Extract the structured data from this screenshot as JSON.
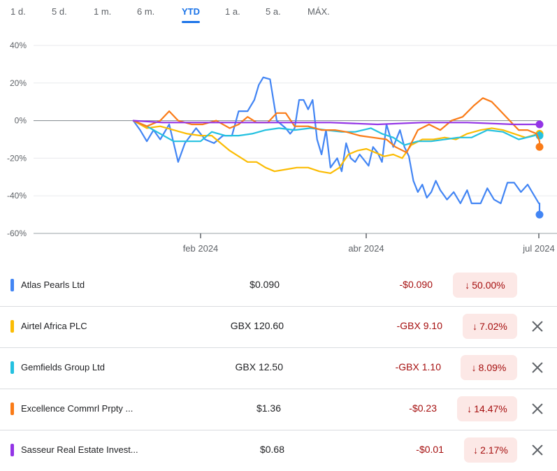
{
  "range_tabs": [
    "1 d.",
    "5 d.",
    "1 m.",
    "6 m.",
    "YTD",
    "1 a.",
    "5 a.",
    "MÁX."
  ],
  "active_tab": "YTD",
  "colors": {
    "accent": "#1a73e8",
    "negative": "#a50e0e",
    "negative_bg": "#fce8e6"
  },
  "chart_data": {
    "type": "line",
    "x_range": [
      "2024-01-02",
      "2024-07-01"
    ],
    "ylim": [
      -60,
      40
    ],
    "y_ticks": [
      "40%",
      "20%",
      "0%",
      "-20%",
      "-40%",
      "-60%"
    ],
    "x_ticks": [
      "feb 2024",
      "abr 2024",
      "jul 2024"
    ],
    "grid": true,
    "series": [
      {
        "name": "Atlas Pearls Ltd",
        "color": "#4285f4",
        "points": [
          [
            "2024-01-02",
            0
          ],
          [
            "2024-01-05",
            -5
          ],
          [
            "2024-01-08",
            -11
          ],
          [
            "2024-01-11",
            -5
          ],
          [
            "2024-01-14",
            -10
          ],
          [
            "2024-01-18",
            -2
          ],
          [
            "2024-01-22",
            -22
          ],
          [
            "2024-01-25",
            -12
          ],
          [
            "2024-01-30",
            -4
          ],
          [
            "2024-02-03",
            -10
          ],
          [
            "2024-02-07",
            -12
          ],
          [
            "2024-02-11",
            -8
          ],
          [
            "2024-02-15",
            -8
          ],
          [
            "2024-02-18",
            5
          ],
          [
            "2024-02-22",
            5
          ],
          [
            "2024-02-25",
            11
          ],
          [
            "2024-02-27",
            19
          ],
          [
            "2024-02-29",
            23
          ],
          [
            "2024-03-03",
            22
          ],
          [
            "2024-03-06",
            0
          ],
          [
            "2024-03-08",
            -2
          ],
          [
            "2024-03-10",
            -4
          ],
          [
            "2024-03-12",
            -7
          ],
          [
            "2024-03-14",
            -4
          ],
          [
            "2024-03-16",
            11
          ],
          [
            "2024-03-18",
            11
          ],
          [
            "2024-03-20",
            6
          ],
          [
            "2024-03-22",
            11
          ],
          [
            "2024-03-24",
            -10
          ],
          [
            "2024-03-26",
            -18
          ],
          [
            "2024-03-28",
            -5
          ],
          [
            "2024-03-30",
            -25
          ],
          [
            "2024-04-02",
            -20
          ],
          [
            "2024-04-04",
            -27
          ],
          [
            "2024-04-06",
            -12
          ],
          [
            "2024-04-08",
            -20
          ],
          [
            "2024-04-10",
            -22
          ],
          [
            "2024-04-12",
            -18
          ],
          [
            "2024-04-14",
            -21
          ],
          [
            "2024-04-16",
            -24
          ],
          [
            "2024-04-18",
            -14
          ],
          [
            "2024-04-20",
            -17
          ],
          [
            "2024-04-22",
            -22
          ],
          [
            "2024-04-24",
            -2
          ],
          [
            "2024-04-27",
            -14
          ],
          [
            "2024-04-30",
            -5
          ],
          [
            "2024-05-02",
            -14
          ],
          [
            "2024-05-04",
            -19
          ],
          [
            "2024-05-06",
            -32
          ],
          [
            "2024-05-08",
            -38
          ],
          [
            "2024-05-10",
            -34
          ],
          [
            "2024-05-12",
            -41
          ],
          [
            "2024-05-14",
            -38
          ],
          [
            "2024-05-16",
            -32
          ],
          [
            "2024-05-18",
            -37
          ],
          [
            "2024-05-21",
            -42
          ],
          [
            "2024-05-24",
            -38
          ],
          [
            "2024-05-27",
            -44
          ],
          [
            "2024-05-30",
            -37
          ],
          [
            "2024-06-01",
            -44
          ],
          [
            "2024-06-05",
            -44
          ],
          [
            "2024-06-08",
            -36
          ],
          [
            "2024-06-11",
            -42
          ],
          [
            "2024-06-14",
            -44
          ],
          [
            "2024-06-17",
            -33
          ],
          [
            "2024-06-20",
            -33
          ],
          [
            "2024-06-23",
            -38
          ],
          [
            "2024-06-26",
            -34
          ],
          [
            "2024-06-29",
            -40
          ],
          [
            "2024-07-01",
            -44
          ],
          [
            "2024-07-05",
            -44
          ],
          [
            "2024-07-08",
            -50
          ]
        ]
      },
      {
        "name": "Airtel Africa PLC",
        "color": "#fbbc04",
        "points": [
          [
            "2024-01-02",
            0
          ],
          [
            "2024-01-08",
            -4
          ],
          [
            "2024-01-14",
            -3
          ],
          [
            "2024-01-20",
            -5
          ],
          [
            "2024-01-26",
            -7
          ],
          [
            "2024-02-01",
            -8
          ],
          [
            "2024-02-06",
            -8
          ],
          [
            "2024-02-10",
            -12
          ],
          [
            "2024-02-14",
            -16
          ],
          [
            "2024-02-18",
            -19
          ],
          [
            "2024-02-22",
            -22
          ],
          [
            "2024-02-26",
            -22
          ],
          [
            "2024-03-01",
            -25
          ],
          [
            "2024-03-05",
            -27
          ],
          [
            "2024-03-10",
            -26
          ],
          [
            "2024-03-15",
            -25
          ],
          [
            "2024-03-20",
            -25
          ],
          [
            "2024-03-25",
            -27
          ],
          [
            "2024-03-30",
            -28
          ],
          [
            "2024-04-03",
            -25
          ],
          [
            "2024-04-07",
            -18
          ],
          [
            "2024-04-11",
            -16
          ],
          [
            "2024-04-15",
            -15
          ],
          [
            "2024-04-19",
            -17
          ],
          [
            "2024-04-23",
            -19
          ],
          [
            "2024-04-27",
            -18
          ],
          [
            "2024-05-01",
            -20
          ],
          [
            "2024-05-05",
            -13
          ],
          [
            "2024-05-10",
            -10
          ],
          [
            "2024-05-15",
            -10
          ],
          [
            "2024-05-20",
            -9
          ],
          [
            "2024-05-25",
            -10
          ],
          [
            "2024-05-30",
            -7
          ],
          [
            "2024-06-05",
            -5
          ],
          [
            "2024-06-10",
            -4
          ],
          [
            "2024-06-15",
            -5
          ],
          [
            "2024-06-20",
            -7
          ],
          [
            "2024-06-25",
            -9
          ],
          [
            "2024-07-01",
            -7
          ],
          [
            "2024-07-05",
            -6
          ],
          [
            "2024-07-08",
            -7
          ]
        ]
      },
      {
        "name": "Gemfields Group Ltd",
        "color": "#24c1e0",
        "points": [
          [
            "2024-01-02",
            0
          ],
          [
            "2024-01-08",
            -3
          ],
          [
            "2024-01-14",
            -7
          ],
          [
            "2024-01-20",
            -11
          ],
          [
            "2024-01-26",
            -11
          ],
          [
            "2024-02-01",
            -11
          ],
          [
            "2024-02-06",
            -6
          ],
          [
            "2024-02-12",
            -8
          ],
          [
            "2024-02-18",
            -8
          ],
          [
            "2024-02-24",
            -7
          ],
          [
            "2024-03-01",
            -5
          ],
          [
            "2024-03-07",
            -4
          ],
          [
            "2024-03-14",
            -5
          ],
          [
            "2024-03-21",
            -4
          ],
          [
            "2024-03-28",
            -5
          ],
          [
            "2024-04-04",
            -6
          ],
          [
            "2024-04-10",
            -6
          ],
          [
            "2024-04-17",
            -4
          ],
          [
            "2024-04-22",
            -7
          ],
          [
            "2024-04-27",
            -9
          ],
          [
            "2024-05-02",
            -13
          ],
          [
            "2024-05-08",
            -11
          ],
          [
            "2024-05-14",
            -11
          ],
          [
            "2024-05-20",
            -10
          ],
          [
            "2024-05-26",
            -9
          ],
          [
            "2024-06-01",
            -9
          ],
          [
            "2024-06-08",
            -5
          ],
          [
            "2024-06-15",
            -6
          ],
          [
            "2024-06-22",
            -10
          ],
          [
            "2024-06-29",
            -8
          ],
          [
            "2024-07-03",
            -6
          ],
          [
            "2024-07-08",
            -8
          ]
        ]
      },
      {
        "name": "Excellence Commrl Prpty ...",
        "color": "#fa7b17",
        "points": [
          [
            "2024-01-02",
            0
          ],
          [
            "2024-01-08",
            -3
          ],
          [
            "2024-01-14",
            0
          ],
          [
            "2024-01-18",
            5
          ],
          [
            "2024-01-22",
            0
          ],
          [
            "2024-01-28",
            -2
          ],
          [
            "2024-02-02",
            -2
          ],
          [
            "2024-02-08",
            0
          ],
          [
            "2024-02-14",
            -4
          ],
          [
            "2024-02-18",
            -2
          ],
          [
            "2024-02-22",
            2
          ],
          [
            "2024-02-26",
            -1
          ],
          [
            "2024-03-02",
            -1
          ],
          [
            "2024-03-06",
            4
          ],
          [
            "2024-03-10",
            4
          ],
          [
            "2024-03-14",
            -3
          ],
          [
            "2024-03-20",
            -3
          ],
          [
            "2024-03-26",
            -5
          ],
          [
            "2024-04-01",
            -5
          ],
          [
            "2024-04-06",
            -6
          ],
          [
            "2024-04-12",
            -8
          ],
          [
            "2024-04-18",
            -9
          ],
          [
            "2024-04-24",
            -10
          ],
          [
            "2024-04-28",
            -14
          ],
          [
            "2024-05-03",
            -17
          ],
          [
            "2024-05-08",
            -5
          ],
          [
            "2024-05-13",
            -2
          ],
          [
            "2024-05-18",
            -5
          ],
          [
            "2024-05-23",
            0
          ],
          [
            "2024-05-28",
            2
          ],
          [
            "2024-06-02",
            8
          ],
          [
            "2024-06-06",
            12
          ],
          [
            "2024-06-10",
            10
          ],
          [
            "2024-06-14",
            5
          ],
          [
            "2024-06-18",
            0
          ],
          [
            "2024-06-22",
            -5
          ],
          [
            "2024-06-26",
            -5
          ],
          [
            "2024-06-30",
            -7
          ],
          [
            "2024-07-02",
            -11
          ],
          [
            "2024-07-05",
            -12
          ],
          [
            "2024-07-08",
            -14
          ]
        ]
      },
      {
        "name": "Sasseur Real Estate Invest...",
        "color": "#9334e6",
        "points": [
          [
            "2024-01-02",
            0
          ],
          [
            "2024-01-15",
            -1
          ],
          [
            "2024-02-01",
            -1
          ],
          [
            "2024-02-20",
            -1
          ],
          [
            "2024-03-10",
            -1
          ],
          [
            "2024-03-30",
            -1
          ],
          [
            "2024-04-20",
            -2
          ],
          [
            "2024-05-10",
            -1
          ],
          [
            "2024-05-30",
            -1
          ],
          [
            "2024-06-20",
            -2
          ],
          [
            "2024-07-08",
            -2
          ]
        ]
      }
    ]
  },
  "list": [
    {
      "name": "Atlas Pearls Ltd",
      "color": "#4285f4",
      "price": "$0.090",
      "change": "-$0.090",
      "percent": "50.00%",
      "removable": false
    },
    {
      "name": "Airtel Africa PLC",
      "color": "#fbbc04",
      "price": "GBX 120.60",
      "change": "-GBX 9.10",
      "percent": "7.02%",
      "removable": true
    },
    {
      "name": "Gemfields Group Ltd",
      "color": "#24c1e0",
      "price": "GBX 12.50",
      "change": "-GBX 1.10",
      "percent": "8.09%",
      "removable": true
    },
    {
      "name": "Excellence Commrl Prpty ...",
      "color": "#fa7b17",
      "price": "$1.36",
      "change": "-$0.23",
      "percent": "14.47%",
      "removable": true
    },
    {
      "name": "Sasseur Real Estate Invest...",
      "color": "#9334e6",
      "price": "$0.68",
      "change": "-$0.01",
      "percent": "2.17%",
      "removable": true
    }
  ],
  "icons": {
    "down_arrow": "arrow-down-icon",
    "remove": "close-icon"
  }
}
